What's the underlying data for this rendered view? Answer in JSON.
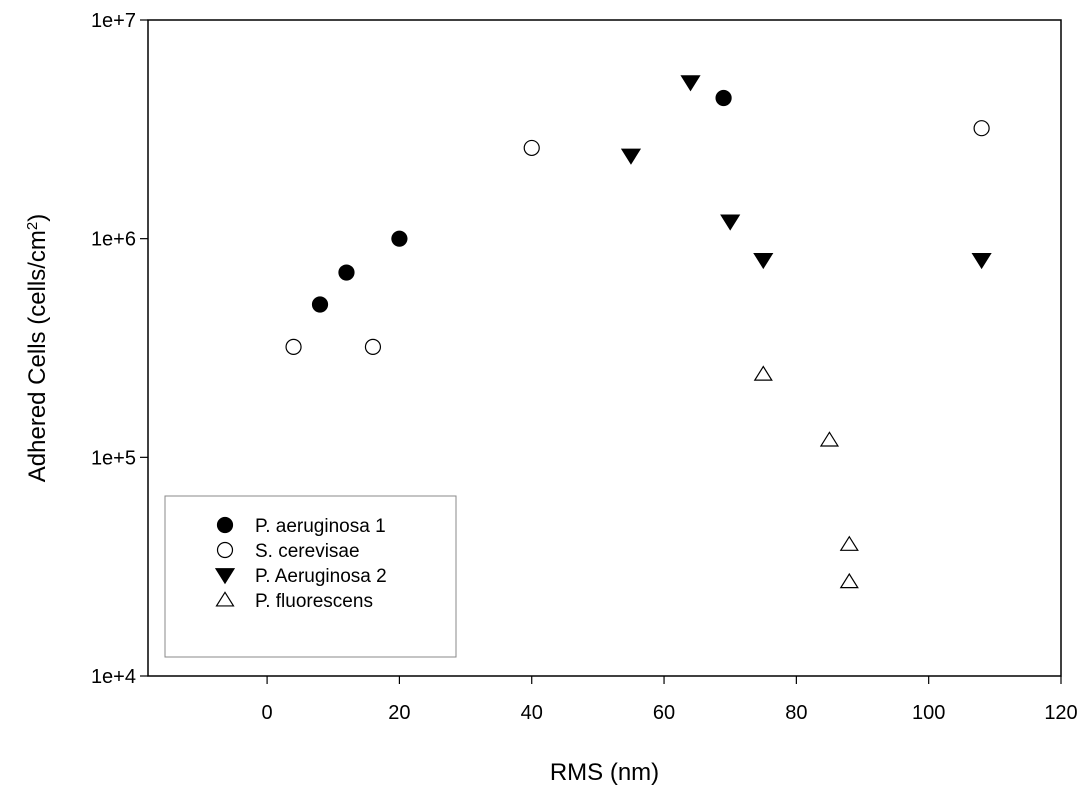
{
  "chart_data": {
    "type": "scatter",
    "title": "",
    "xlabel": "RMS (nm)",
    "ylabel": "Adhered Cells (cells/cm",
    "ylabel_superscript": "2",
    "ylabel_suffix": ")",
    "xlim": [
      -18,
      120
    ],
    "ylim": [
      10000,
      10000000
    ],
    "yscale": "log",
    "xticks": [
      0,
      20,
      40,
      60,
      80,
      100,
      120
    ],
    "xtick_labels": [
      "0",
      "20",
      "40",
      "60",
      "80",
      "100",
      "120"
    ],
    "yticks": [
      10000,
      100000,
      1000000,
      10000000
    ],
    "ytick_labels": [
      "1e+4",
      "1e+5",
      "1e+6",
      "1e+7"
    ],
    "grid": false,
    "legend_position": "bottom-left",
    "series": [
      {
        "name": "P. aeruginosa 1",
        "marker": "circle",
        "filled": true,
        "x": [
          8,
          12,
          20,
          69
        ],
        "y": [
          500000,
          700000,
          1000000,
          4400000
        ]
      },
      {
        "name": "S. cerevisae",
        "marker": "circle",
        "filled": false,
        "x": [
          4,
          16,
          40,
          108
        ],
        "y": [
          320000,
          320000,
          2600000,
          3200000
        ]
      },
      {
        "name": "P. Aeruginosa 2",
        "marker": "triangle-down",
        "filled": true,
        "x": [
          55,
          64,
          70,
          75,
          108
        ],
        "y": [
          2400000,
          5200000,
          1200000,
          800000,
          800000
        ]
      },
      {
        "name": "P. fluorescens",
        "marker": "triangle-up",
        "filled": false,
        "x": [
          75,
          85,
          88,
          88
        ],
        "y": [
          240000,
          120000,
          40000,
          27000
        ]
      }
    ]
  }
}
